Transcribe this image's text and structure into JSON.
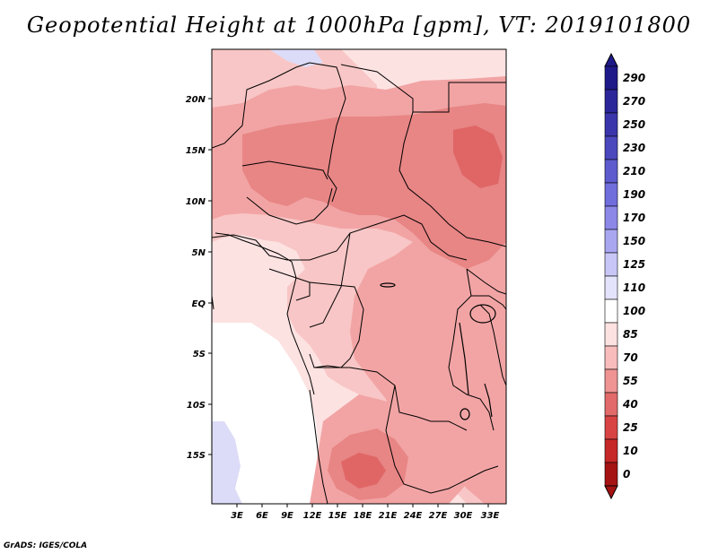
{
  "title": "Geopotential Height at 1000hPa [gpm], VT: 2019101800",
  "credit": "GrADS: IGES/COLA",
  "map": {
    "lon_labels": [
      "3E",
      "6E",
      "9E",
      "12E",
      "15E",
      "18E",
      "21E",
      "24E",
      "27E",
      "30E",
      "33E"
    ],
    "lat_labels": [
      "20N",
      "15N",
      "10N",
      "5N",
      "EQ",
      "5S",
      "10S",
      "15S"
    ]
  },
  "colorbar": {
    "labels": [
      "290",
      "270",
      "250",
      "230",
      "210",
      "190",
      "170",
      "150",
      "125",
      "110",
      "100",
      "85",
      "70",
      "55",
      "40",
      "25",
      "10",
      "0"
    ],
    "colors": [
      "#1f1a8a",
      "#2b2699",
      "#3a35ab",
      "#4b47bd",
      "#5d5bce",
      "#706ddd",
      "#8b88e8",
      "#a9a7f0",
      "#c7c6f6",
      "#e3e3fb",
      "#ffffff",
      "#fde2e2",
      "#f8bcbc",
      "#ef9393",
      "#e26a6a",
      "#d84444",
      "#c62727",
      "#a51313"
    ]
  },
  "legend_colors": {
    "v100_110": "#fde2e2",
    "v85_100": "#f8c6c6",
    "v70_85": "#f2a4a4",
    "v55_70": "#e88585",
    "v40_55": "#e06666",
    "v110_125": "#dcdcf9"
  }
}
